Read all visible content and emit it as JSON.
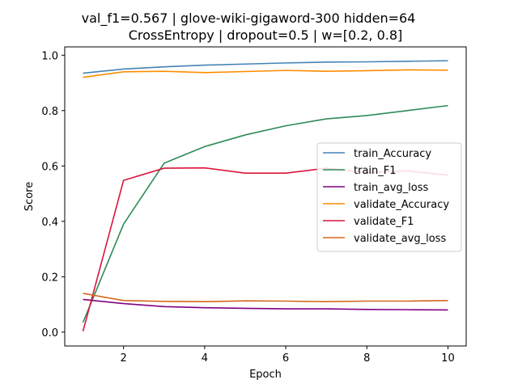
{
  "chart_data": {
    "type": "line",
    "title_line1": "val_f1=0.567 | glove-wiki-gigaword-300  hidden=64",
    "title_line2": "CrossEntropy | dropout=0.5 | w=[0.2, 0.8]",
    "xlabel": "Epoch",
    "ylabel": "Score",
    "xlim": [
      0.55,
      10.45
    ],
    "ylim": [
      -0.05,
      1.03
    ],
    "xticks": [
      2,
      4,
      6,
      8,
      10
    ],
    "yticks": [
      0.0,
      0.2,
      0.4,
      0.6,
      0.8,
      1.0
    ],
    "x": [
      1,
      2,
      3,
      4,
      5,
      6,
      7,
      8,
      9,
      10
    ],
    "grid": false,
    "legend_position": "center-right",
    "series": [
      {
        "name": "train_Accuracy",
        "color": "#4682b4",
        "values": [
          0.935,
          0.95,
          0.958,
          0.964,
          0.968,
          0.972,
          0.975,
          0.976,
          0.978,
          0.98
        ]
      },
      {
        "name": "train_F1",
        "color": "#2e8b57",
        "values": [
          0.035,
          0.39,
          0.61,
          0.67,
          0.712,
          0.745,
          0.77,
          0.782,
          0.8,
          0.818
        ]
      },
      {
        "name": "train_avg_loss",
        "color": "#800080",
        "values": [
          0.118,
          0.103,
          0.092,
          0.088,
          0.086,
          0.084,
          0.084,
          0.082,
          0.081,
          0.08
        ]
      },
      {
        "name": "validate_Accuracy",
        "color": "#ff8c00",
        "values": [
          0.92,
          0.94,
          0.942,
          0.937,
          0.941,
          0.945,
          0.942,
          0.944,
          0.947,
          0.946
        ]
      },
      {
        "name": "validate_F1",
        "color": "#dc143c",
        "values": [
          0.003,
          0.548,
          0.592,
          0.593,
          0.574,
          0.574,
          0.592,
          0.576,
          0.582,
          0.567
        ]
      },
      {
        "name": "validate_avg_loss",
        "color": "#d2691e",
        "values": [
          0.14,
          0.114,
          0.111,
          0.11,
          0.113,
          0.112,
          0.11,
          0.112,
          0.112,
          0.114
        ]
      }
    ]
  }
}
